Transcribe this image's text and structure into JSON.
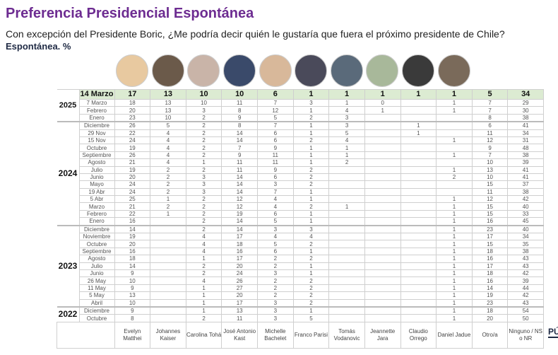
{
  "title": "Preferencia Presidencial Espontánea",
  "subtitle": "Con excepción del Presidente Boric, ¿Me podría decir quién le gustaría que fuera el próximo presidente de Chile?",
  "subtitle2": "Espontánea. %",
  "logo": "PÚ",
  "candidates": [
    "Evelyn Matthei",
    "Johannes Kaiser",
    "Carolina Tohá",
    "José Antonio Kast",
    "Michelle Bachelet",
    "Franco Parisi",
    "Tomás Vodanovic",
    "Jeannette Jara",
    "Claudio Orrego",
    "Daniel Jadue",
    "Otro/a",
    "Ninguno / NS o NR"
  ],
  "photo_colors": [
    "#e8c9a0",
    "#6b5a4a",
    "#c9b4a8",
    "#3a4a6a",
    "#d8b89a",
    "#4a4a5a",
    "#5a6a7a",
    "#a8b89a",
    "#3a3a3a",
    "#7a6a5a"
  ],
  "header_color": "#dcebd2",
  "title_color": "#6d2c91",
  "groups": [
    {
      "year": "2025",
      "rows": [
        {
          "label": "14 Marzo",
          "v": [
            "17",
            "13",
            "10",
            "10",
            "6",
            "1",
            "1",
            "1",
            "1",
            "1",
            "5",
            "34"
          ],
          "highlight": true
        },
        {
          "label": "7 Marzo",
          "v": [
            "18",
            "13",
            "10",
            "11",
            "7",
            "3",
            "1",
            "0",
            "",
            "1",
            "7",
            "29"
          ]
        },
        {
          "label": "Febrero",
          "v": [
            "20",
            "13",
            "3",
            "8",
            "12",
            "1",
            "4",
            "1",
            "",
            "1",
            "7",
            "30"
          ]
        },
        {
          "label": "Enero",
          "v": [
            "23",
            "10",
            "2",
            "9",
            "5",
            "2",
            "3",
            "",
            "",
            "",
            "8",
            "38"
          ]
        }
      ]
    },
    {
      "year": "2024",
      "rows": [
        {
          "label": "Diciembre",
          "v": [
            "26",
            "5",
            "2",
            "8",
            "7",
            "1",
            "3",
            "",
            "1",
            "",
            "6",
            "41"
          ]
        },
        {
          "label": "29 Nov",
          "v": [
            "22",
            "4",
            "2",
            "14",
            "6",
            "1",
            "5",
            "",
            "1",
            "",
            "11",
            "34"
          ]
        },
        {
          "label": "15 Nov",
          "v": [
            "24",
            "4",
            "2",
            "14",
            "6",
            "2",
            "4",
            "",
            "",
            "1",
            "12",
            "31"
          ]
        },
        {
          "label": "Octubre",
          "v": [
            "19",
            "4",
            "2",
            "7",
            "9",
            "1",
            "1",
            "",
            "",
            "",
            "9",
            "48"
          ]
        },
        {
          "label": "Septiembre",
          "v": [
            "26",
            "4",
            "2",
            "9",
            "11",
            "1",
            "1",
            "",
            "",
            "1",
            "7",
            "38"
          ]
        },
        {
          "label": "Agosto",
          "v": [
            "21",
            "4",
            "1",
            "11",
            "11",
            "1",
            "2",
            "",
            "",
            "",
            "10",
            "39"
          ]
        },
        {
          "label": "Julio",
          "v": [
            "19",
            "2",
            "2",
            "11",
            "9",
            "2",
            "",
            "",
            "",
            "1",
            "13",
            "41"
          ]
        },
        {
          "label": "Junio",
          "v": [
            "20",
            "2",
            "3",
            "14",
            "6",
            "2",
            "",
            "",
            "",
            "2",
            "10",
            "41"
          ]
        },
        {
          "label": "Mayo",
          "v": [
            "24",
            "2",
            "3",
            "14",
            "3",
            "2",
            "",
            "",
            "",
            "",
            "15",
            "37"
          ]
        },
        {
          "label": "19 Abr",
          "v": [
            "24",
            "2",
            "3",
            "14",
            "7",
            "1",
            "",
            "",
            "",
            "",
            "11",
            "38"
          ]
        },
        {
          "label": "5 Abr",
          "v": [
            "25",
            "1",
            "2",
            "12",
            "4",
            "1",
            "",
            "",
            "",
            "1",
            "12",
            "42"
          ]
        },
        {
          "label": "Marzo",
          "v": [
            "21",
            "2",
            "2",
            "12",
            "4",
            "2",
            "1",
            "",
            "",
            "1",
            "15",
            "40"
          ]
        },
        {
          "label": "Febrero",
          "v": [
            "22",
            "1",
            "2",
            "19",
            "6",
            "1",
            "",
            "",
            "",
            "1",
            "15",
            "33"
          ]
        },
        {
          "label": "Enero",
          "v": [
            "16",
            "",
            "2",
            "14",
            "5",
            "1",
            "",
            "",
            "",
            "1",
            "16",
            "45"
          ]
        }
      ]
    },
    {
      "year": "2023",
      "rows": [
        {
          "label": "Diciembre",
          "v": [
            "14",
            "",
            "2",
            "14",
            "3",
            "3",
            "",
            "",
            "",
            "1",
            "23",
            "40"
          ]
        },
        {
          "label": "Noviembre",
          "v": [
            "19",
            "",
            "4",
            "17",
            "4",
            "4",
            "",
            "",
            "",
            "1",
            "17",
            "34"
          ]
        },
        {
          "label": "Octubre",
          "v": [
            "20",
            "",
            "4",
            "18",
            "5",
            "2",
            "",
            "",
            "",
            "1",
            "15",
            "35"
          ]
        },
        {
          "label": "Septiembre",
          "v": [
            "16",
            "",
            "4",
            "16",
            "6",
            "1",
            "",
            "",
            "",
            "1",
            "18",
            "38"
          ]
        },
        {
          "label": "Agosto",
          "v": [
            "18",
            "",
            "1",
            "17",
            "2",
            "2",
            "",
            "",
            "",
            "1",
            "16",
            "43"
          ]
        },
        {
          "label": "Julio",
          "v": [
            "14",
            "",
            "2",
            "20",
            "2",
            "1",
            "",
            "",
            "",
            "1",
            "17",
            "43"
          ]
        },
        {
          "label": "Junio",
          "v": [
            "9",
            "",
            "2",
            "24",
            "3",
            "1",
            "",
            "",
            "",
            "1",
            "18",
            "42"
          ]
        },
        {
          "label": "26 May",
          "v": [
            "10",
            "",
            "4",
            "26",
            "2",
            "2",
            "",
            "",
            "",
            "1",
            "16",
            "39"
          ]
        },
        {
          "label": "11 May",
          "v": [
            "9",
            "",
            "1",
            "27",
            "2",
            "2",
            "",
            "",
            "",
            "1",
            "14",
            "44"
          ]
        },
        {
          "label": "5 May",
          "v": [
            "13",
            "",
            "1",
            "20",
            "2",
            "2",
            "",
            "",
            "",
            "1",
            "19",
            "42"
          ]
        },
        {
          "label": "Abril",
          "v": [
            "10",
            "",
            "1",
            "17",
            "3",
            "2",
            "",
            "",
            "",
            "1",
            "23",
            "43"
          ]
        }
      ]
    },
    {
      "year": "2022",
      "rows": [
        {
          "label": "Diciembre",
          "v": [
            "9",
            "",
            "1",
            "13",
            "3",
            "1",
            "",
            "",
            "",
            "1",
            "18",
            "54"
          ]
        },
        {
          "label": "Octubre",
          "v": [
            "8",
            "",
            "2",
            "11",
            "3",
            "5",
            "",
            "",
            "",
            "1",
            "20",
            "50"
          ]
        }
      ]
    }
  ]
}
